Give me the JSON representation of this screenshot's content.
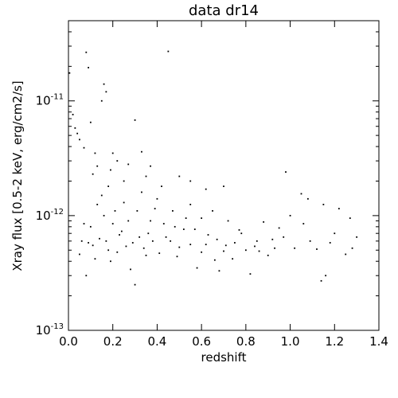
{
  "chart_data": {
    "type": "scatter",
    "title": "data dr14",
    "xlabel": "redshift",
    "ylabel": "Xray flux [0.5-2 keV, erg/cm2/s]",
    "xlim": [
      0.0,
      1.4
    ],
    "ylim": [
      1e-13,
      5e-11
    ],
    "yscale": "log",
    "grid": false,
    "x_ticks": [
      {
        "value": 0.0,
        "label": "0.0"
      },
      {
        "value": 0.2,
        "label": "0.2"
      },
      {
        "value": 0.4,
        "label": "0.4"
      },
      {
        "value": 0.6,
        "label": "0.6"
      },
      {
        "value": 0.8,
        "label": "0.8"
      },
      {
        "value": 1.0,
        "label": "1.0"
      },
      {
        "value": 1.2,
        "label": "1.2"
      },
      {
        "value": 1.4,
        "label": "1.4"
      }
    ],
    "y_ticks": [
      {
        "value": 1e-13,
        "base": "10",
        "exp": "-13"
      },
      {
        "value": 1e-12,
        "base": "10",
        "exp": "-12"
      },
      {
        "value": 1e-11,
        "base": "10",
        "exp": "-11"
      }
    ],
    "marker_color": "#000000",
    "points": [
      [
        0.005,
        1.75e-11
      ],
      [
        0.02,
        7.6e-12
      ],
      [
        0.03,
        5.8e-12
      ],
      [
        0.04,
        5.2e-12
      ],
      [
        0.05,
        4.6e-12
      ],
      [
        0.07,
        3.9e-12
      ],
      [
        0.08,
        2.65e-11
      ],
      [
        0.09,
        1.95e-11
      ],
      [
        0.1,
        6.5e-12
      ],
      [
        0.12,
        3.5e-12
      ],
      [
        0.15,
        1e-11
      ],
      [
        0.16,
        1.4e-11
      ],
      [
        0.17,
        1.2e-11
      ],
      [
        0.11,
        2.3e-12
      ],
      [
        0.13,
        2.7e-12
      ],
      [
        0.19,
        2.5e-12
      ],
      [
        0.22,
        3e-12
      ],
      [
        0.27,
        2.8e-12
      ],
      [
        0.3,
        6.8e-12
      ],
      [
        0.33,
        3.6e-12
      ],
      [
        0.37,
        2.7e-12
      ],
      [
        0.45,
        2.7e-11
      ],
      [
        0.5,
        2.2e-12
      ],
      [
        0.55,
        2e-12
      ],
      [
        0.62,
        1.7e-12
      ],
      [
        0.7,
        1.8e-12
      ],
      [
        0.98,
        2.4e-12
      ],
      [
        1.05,
        1.55e-12
      ],
      [
        1.08,
        1.4e-12
      ],
      [
        1.15,
        1.25e-12
      ],
      [
        1.22,
        1.15e-12
      ],
      [
        1.27,
        9.5e-13
      ],
      [
        1.3,
        6.5e-13
      ],
      [
        1.28,
        5.2e-13
      ],
      [
        1.25,
        4.6e-13
      ],
      [
        1.2,
        7e-13
      ],
      [
        1.12,
        5.1e-13
      ],
      [
        1.06,
        8.5e-13
      ],
      [
        1.02,
        5.2e-13
      ],
      [
        1.0,
        1e-12
      ],
      [
        0.97,
        6.5e-13
      ],
      [
        0.93,
        5.2e-13
      ],
      [
        0.9,
        4.5e-13
      ],
      [
        0.88,
        8.8e-13
      ],
      [
        0.85,
        6e-13
      ],
      [
        0.82,
        3.1e-13
      ],
      [
        0.8,
        5e-13
      ],
      [
        0.77,
        7.5e-13
      ],
      [
        0.74,
        4.2e-13
      ],
      [
        0.71,
        5.5e-13
      ],
      [
        0.68,
        3.3e-13
      ],
      [
        0.66,
        4.1e-13
      ],
      [
        0.63,
        6.8e-13
      ],
      [
        0.6,
        4.8e-13
      ],
      [
        0.58,
        3.5e-13
      ],
      [
        0.55,
        5.6e-13
      ],
      [
        0.52,
        7.6e-13
      ],
      [
        0.49,
        4.4e-13
      ],
      [
        0.46,
        6e-13
      ],
      [
        0.43,
        8.5e-13
      ],
      [
        0.41,
        4.7e-13
      ],
      [
        0.39,
        1.15e-12
      ],
      [
        0.37,
        9e-13
      ],
      [
        0.35,
        4.5e-13
      ],
      [
        0.32,
        6.5e-13
      ],
      [
        0.3,
        2.5e-13
      ],
      [
        0.28,
        3.4e-13
      ],
      [
        0.26,
        5.4e-13
      ],
      [
        0.24,
        7.3e-13
      ],
      [
        0.22,
        4.8e-13
      ],
      [
        0.2,
        8.5e-13
      ],
      [
        0.18,
        5e-13
      ],
      [
        0.16,
        1e-12
      ],
      [
        0.14,
        6.3e-13
      ],
      [
        0.12,
        4.2e-13
      ],
      [
        0.1,
        8e-13
      ],
      [
        0.09,
        5.8e-13
      ],
      [
        0.08,
        3e-13
      ],
      [
        0.06,
        6e-13
      ],
      [
        0.05,
        4.6e-13
      ],
      [
        0.15,
        1.5e-12
      ],
      [
        0.18,
        1.8e-12
      ],
      [
        0.25,
        1.3e-12
      ],
      [
        0.33,
        1.6e-12
      ],
      [
        0.4,
        1.4e-12
      ],
      [
        0.47,
        1.1e-12
      ],
      [
        0.55,
        1.25e-12
      ],
      [
        0.6,
        9.5e-13
      ],
      [
        0.65,
        1.1e-12
      ],
      [
        0.72,
        9e-13
      ],
      [
        0.78,
        7e-13
      ],
      [
        0.35,
        2.2e-12
      ],
      [
        0.42,
        1.8e-12
      ],
      [
        0.21,
        1.1e-12
      ],
      [
        0.27,
        9e-13
      ],
      [
        0.13,
        1.25e-12
      ],
      [
        0.23,
        6.8e-13
      ],
      [
        0.29,
        5.8e-13
      ],
      [
        0.31,
        1.1e-12
      ],
      [
        0.36,
        7e-13
      ],
      [
        0.44,
        6.5e-13
      ],
      [
        0.48,
        8e-13
      ],
      [
        0.53,
        9.5e-13
      ],
      [
        0.57,
        7.6e-13
      ],
      [
        0.67,
        6.2e-13
      ],
      [
        0.75,
        5.8e-13
      ],
      [
        0.84,
        5.4e-13
      ],
      [
        0.92,
        6.2e-13
      ],
      [
        0.95,
        7.8e-13
      ],
      [
        1.09,
        6e-13
      ],
      [
        1.18,
        5.8e-13
      ],
      [
        1.14,
        2.7e-13
      ],
      [
        1.16,
        3e-13
      ],
      [
        0.17,
        6e-13
      ],
      [
        0.19,
        4e-13
      ],
      [
        0.11,
        5.5e-13
      ],
      [
        0.07,
        8.5e-13
      ],
      [
        0.34,
        5.2e-13
      ],
      [
        0.38,
        6e-13
      ],
      [
        0.5,
        5.3e-13
      ],
      [
        0.62,
        5.6e-13
      ],
      [
        0.7,
        4.9e-13
      ],
      [
        0.86,
        4.9e-13
      ],
      [
        0.25,
        2e-12
      ],
      [
        0.2,
        3.5e-12
      ]
    ]
  }
}
